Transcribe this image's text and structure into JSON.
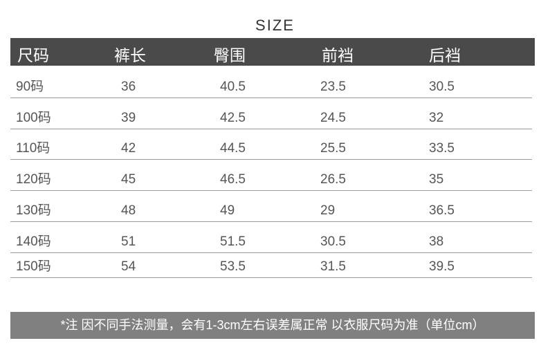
{
  "title": "SIZE",
  "table": {
    "headers": [
      "尺码",
      "裤长",
      "臀围",
      "前裆",
      "后裆"
    ],
    "rows": [
      [
        "90码",
        "36",
        "40.5",
        "23.5",
        "30.5"
      ],
      [
        "100码",
        "39",
        "42.5",
        "24.5",
        "32"
      ],
      [
        "110码",
        "42",
        "44.5",
        "25.5",
        "33.5"
      ],
      [
        "120码",
        "45",
        "46.5",
        "26.5",
        "35"
      ],
      [
        "130码",
        "48",
        "49",
        "29",
        "36.5"
      ],
      [
        "140码",
        "51",
        "51.5",
        "30.5",
        "38"
      ],
      [
        "150码",
        "54",
        "53.5",
        "31.5",
        "39.5"
      ]
    ]
  },
  "footer_note": "*注  因不同手法测量，会有1-3cm左右误差属正常  以衣服尺码为准（单位cm）",
  "colors": {
    "header_bg": "#4a4a4a",
    "footer_bg": "#808080"
  }
}
